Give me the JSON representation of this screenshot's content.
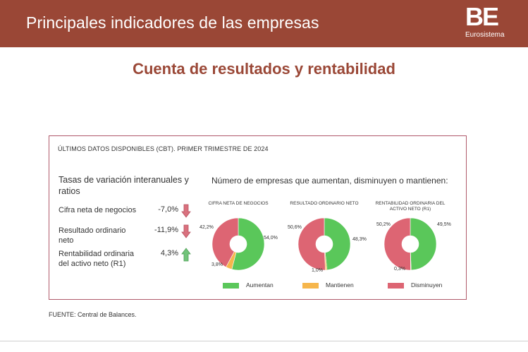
{
  "header": {
    "title": "Principales indicadores de las empresas",
    "logo_text": "BE",
    "logo_sub": "Eurosistema"
  },
  "subtitle": "Cuenta de resultados y rentabilidad",
  "panel": {
    "heading": "ÚLTIMOS DATOS DISPONIBLES (CBT). PRIMER TRIMESTRE DE 2024"
  },
  "indicators": {
    "title": "Tasas de variación interanuales y ratios",
    "items": [
      {
        "label": "Cifra neta de negocios",
        "value": "-7,0%",
        "trend": "down"
      },
      {
        "label": "Resultado ordinario neto",
        "value": "-11,9%",
        "trend": "down"
      },
      {
        "label": "Rentabilidad ordinaria del activo neto (R1)",
        "value": "4,3%",
        "trend": "up"
      }
    ]
  },
  "colors": {
    "aumentan": "#5ac75a",
    "mantienen": "#f6b64c",
    "disminuyen": "#dd6573",
    "brand": "#9a4736",
    "arrow_down": "#d9717e",
    "arrow_up": "#72c47a"
  },
  "chart_data": {
    "type": "pie",
    "title": "Número de empresas que aumentan, disminuyen o mantienen:",
    "legend": [
      "Aumentan",
      "Mantienen",
      "Disminuyen"
    ],
    "charts": [
      {
        "title": "CIFRA NETA DE NEGOCIOS",
        "values": [
          54.0,
          3.8,
          42.2
        ],
        "labels": [
          "54,0%",
          "3,8%",
          "42,2%"
        ]
      },
      {
        "title": "RESULTADO ORDINARIO NETO",
        "values": [
          48.3,
          1.0,
          50.6
        ],
        "labels": [
          "48,3%",
          "1,0%",
          "50,6%"
        ]
      },
      {
        "title": "RENTABILIDAD ORDINARIA DEL ACTIVO NETO (R1)",
        "values": [
          49.5,
          0.3,
          50.2
        ],
        "labels": [
          "49,5%",
          "0,3%",
          "50,2%"
        ]
      }
    ]
  },
  "source": "FUENTE: Central de Balances."
}
